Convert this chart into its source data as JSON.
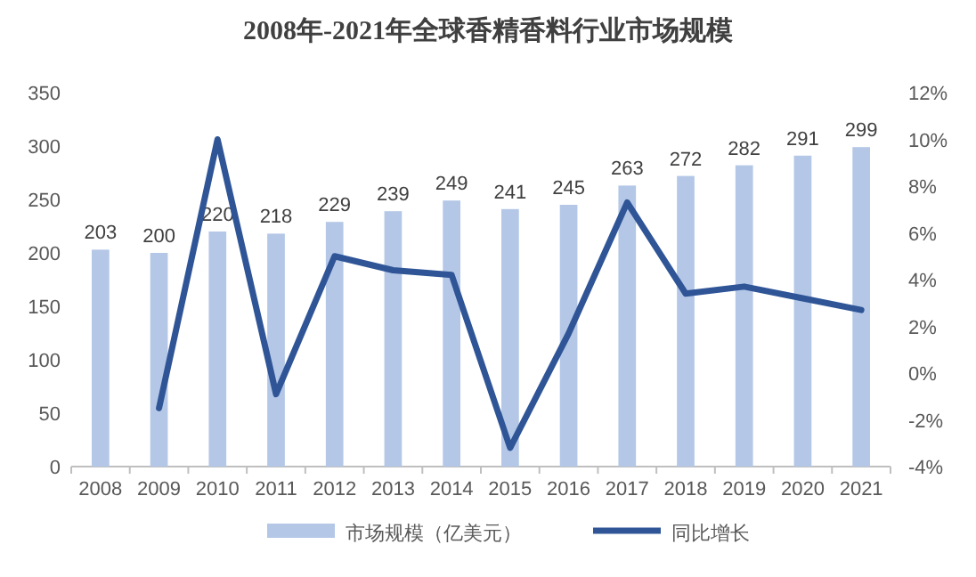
{
  "chart_data": {
    "type": "bar",
    "title": "2008年-2021年全球香精香料行业市场规模",
    "categories": [
      "2008",
      "2009",
      "2010",
      "2011",
      "2012",
      "2013",
      "2014",
      "2015",
      "2016",
      "2017",
      "2018",
      "2019",
      "2020",
      "2021"
    ],
    "series": [
      {
        "name": "市场规模（亿美元）",
        "color": "#b4c7e7",
        "values": [
          203,
          200,
          220,
          218,
          229,
          239,
          249,
          241,
          245,
          263,
          272,
          282,
          291,
          299
        ],
        "value_labels": [
          "203",
          "200",
          "220",
          "218",
          "229",
          "239",
          "249",
          "241",
          "245",
          "263",
          "272",
          "282",
          "291",
          "299"
        ]
      },
      {
        "name": "同比增长",
        "type": "line",
        "axis": "y2",
        "color": "#2f5597",
        "values": [
          null,
          -1.5,
          10,
          -0.9,
          5.0,
          4.4,
          4.2,
          -3.2,
          1.7,
          7.3,
          3.4,
          3.7,
          3.2,
          2.7
        ]
      }
    ],
    "ylim": [
      0,
      350
    ],
    "yticks": [
      0,
      50,
      100,
      150,
      200,
      250,
      300,
      350
    ],
    "y2lim": [
      -4,
      12
    ],
    "y2ticks": [
      {
        "value": -4,
        "label": "-4%"
      },
      {
        "value": -2,
        "label": "-2%"
      },
      {
        "value": 0,
        "label": "0%"
      },
      {
        "value": 2,
        "label": "2%"
      },
      {
        "value": 4,
        "label": "4%"
      },
      {
        "value": 6,
        "label": "6%"
      },
      {
        "value": 8,
        "label": "8%"
      },
      {
        "value": 10,
        "label": "10%"
      },
      {
        "value": 12,
        "label": "12%"
      }
    ],
    "marker": "none",
    "line_style": "solid",
    "grid": false,
    "legend": "bottom"
  }
}
